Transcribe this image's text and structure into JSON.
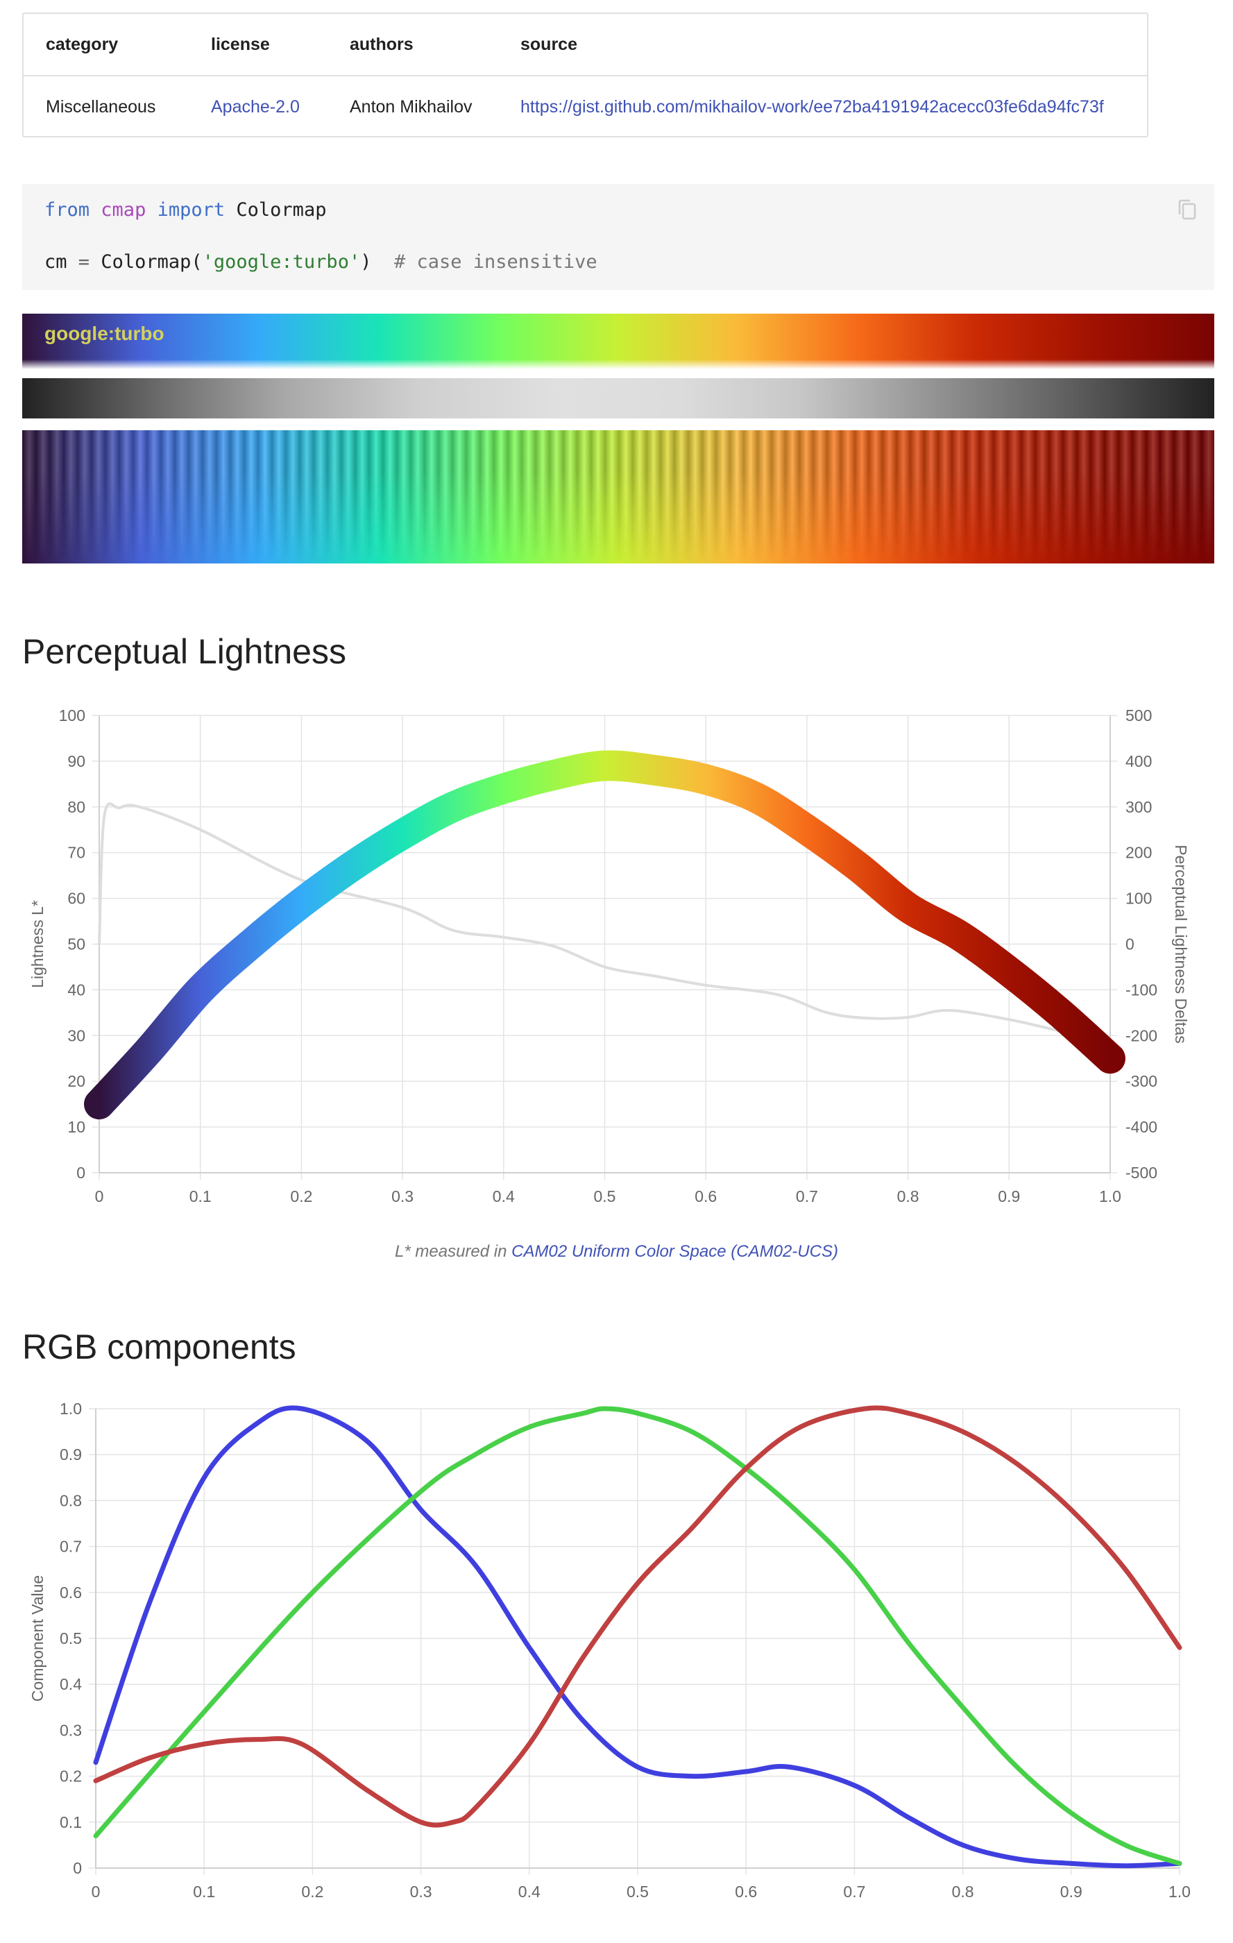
{
  "info": {
    "headers": {
      "category": "category",
      "license": "license",
      "authors": "authors",
      "source": "source"
    },
    "values": {
      "category": "Miscellaneous",
      "license": "Apache-2.0",
      "authors": "Anton Mikhailov",
      "source": "https://gist.github.com/mikhailov-work/ee72ba4191942acecc03fe6da94fc73f"
    }
  },
  "code": {
    "line1": {
      "kw1": "from",
      "mod": "cmap",
      "kw2": "import",
      "name": "Colormap"
    },
    "line2": {
      "var": "cm",
      "eq": "=",
      "call": "Colormap(",
      "arg": "'google:turbo'",
      "close": ")",
      "comment": "# case insensitive"
    },
    "copy_icon": "copy-icon"
  },
  "colormap": {
    "label_namespace": "google",
    "label_sep": ":",
    "label_name": "turbo"
  },
  "sections": {
    "lightness_title": "Perceptual Lightness",
    "rgb_title": "RGB components"
  },
  "caption": {
    "prefix": "L* measured in",
    "link": "CAM02 Uniform Color Space (CAM02-UCS)"
  },
  "chart_data": [
    {
      "type": "line",
      "title": "",
      "xlabel": "",
      "ylabel": "Lightness L*",
      "y2label": "Perceptual Lightness Deltas",
      "xlim": [
        0,
        1
      ],
      "ylim": [
        0,
        100
      ],
      "y2lim": [
        -500,
        500
      ],
      "grid": true,
      "x_ticks": [
        "0",
        "0.1",
        "0.2",
        "0.3",
        "0.4",
        "0.5",
        "0.6",
        "0.7",
        "0.8",
        "0.9",
        "1.0"
      ],
      "y_ticks": [
        "0",
        "10",
        "20",
        "30",
        "40",
        "50",
        "60",
        "70",
        "80",
        "90",
        "100"
      ],
      "y2_ticks": [
        "-500",
        "-400",
        "-300",
        "-200",
        "-100",
        "0",
        "100",
        "200",
        "300",
        "400",
        "500"
      ],
      "series": [
        {
          "axis": "left",
          "color": "turbo-gradient",
          "x": [
            0,
            0.05,
            0.1,
            0.15,
            0.2,
            0.25,
            0.3,
            0.35,
            0.4,
            0.45,
            0.5,
            0.55,
            0.6,
            0.65,
            0.7,
            0.75,
            0.8,
            0.85,
            0.9,
            0.95,
            1.0
          ],
          "y": [
            15,
            27,
            40,
            50,
            59,
            67,
            74,
            80,
            84,
            87,
            89,
            88,
            86,
            82,
            75,
            67,
            58,
            52,
            44,
            35,
            25
          ]
        },
        {
          "axis": "right",
          "color": "#dddddd",
          "x": [
            0,
            0.005,
            0.02,
            0.04,
            0.1,
            0.2,
            0.3,
            0.35,
            0.4,
            0.45,
            0.5,
            0.55,
            0.6,
            0.67,
            0.72,
            0.76,
            0.8,
            0.84,
            0.9,
            0.95,
            1.0
          ],
          "y": [
            0,
            280,
            298,
            300,
            250,
            140,
            80,
            30,
            15,
            -5,
            -50,
            -70,
            -90,
            -110,
            -150,
            -162,
            -160,
            -145,
            -165,
            -190,
            -215
          ]
        }
      ]
    },
    {
      "type": "line",
      "title": "",
      "xlabel": "",
      "ylabel": "Component Value",
      "xlim": [
        0,
        1
      ],
      "ylim": [
        0,
        1
      ],
      "grid": true,
      "x_ticks": [
        "0",
        "0.1",
        "0.2",
        "0.3",
        "0.4",
        "0.5",
        "0.6",
        "0.7",
        "0.8",
        "0.9",
        "1.0"
      ],
      "y_ticks": [
        "0",
        "0.1",
        "0.2",
        "0.3",
        "0.4",
        "0.5",
        "0.6",
        "0.7",
        "0.8",
        "0.9",
        "1.0"
      ],
      "series": [
        {
          "color": "#3f3fe0",
          "x": [
            0,
            0.05,
            0.1,
            0.15,
            0.19,
            0.25,
            0.3,
            0.35,
            0.4,
            0.45,
            0.5,
            0.55,
            0.6,
            0.64,
            0.7,
            0.75,
            0.8,
            0.85,
            0.9,
            0.95,
            1.0
          ],
          "y": [
            0.23,
            0.58,
            0.85,
            0.97,
            1.0,
            0.93,
            0.78,
            0.66,
            0.48,
            0.32,
            0.22,
            0.2,
            0.21,
            0.22,
            0.18,
            0.11,
            0.05,
            0.02,
            0.01,
            0.005,
            0.01
          ]
        },
        {
          "color": "#48d048",
          "x": [
            0,
            0.1,
            0.2,
            0.3,
            0.35,
            0.4,
            0.45,
            0.47,
            0.5,
            0.55,
            0.6,
            0.65,
            0.7,
            0.75,
            0.8,
            0.85,
            0.9,
            0.95,
            1.0
          ],
          "y": [
            0.07,
            0.34,
            0.6,
            0.82,
            0.9,
            0.96,
            0.99,
            1.0,
            0.99,
            0.95,
            0.87,
            0.77,
            0.65,
            0.49,
            0.35,
            0.22,
            0.12,
            0.05,
            0.01
          ]
        },
        {
          "color": "#c04040",
          "x": [
            0,
            0.05,
            0.1,
            0.15,
            0.19,
            0.25,
            0.3,
            0.33,
            0.35,
            0.4,
            0.45,
            0.5,
            0.55,
            0.6,
            0.65,
            0.71,
            0.75,
            0.8,
            0.85,
            0.9,
            0.95,
            1.0
          ],
          "y": [
            0.19,
            0.24,
            0.27,
            0.28,
            0.27,
            0.17,
            0.1,
            0.1,
            0.13,
            0.27,
            0.46,
            0.62,
            0.74,
            0.87,
            0.96,
            1.0,
            0.99,
            0.95,
            0.88,
            0.78,
            0.65,
            0.48
          ]
        }
      ]
    }
  ]
}
